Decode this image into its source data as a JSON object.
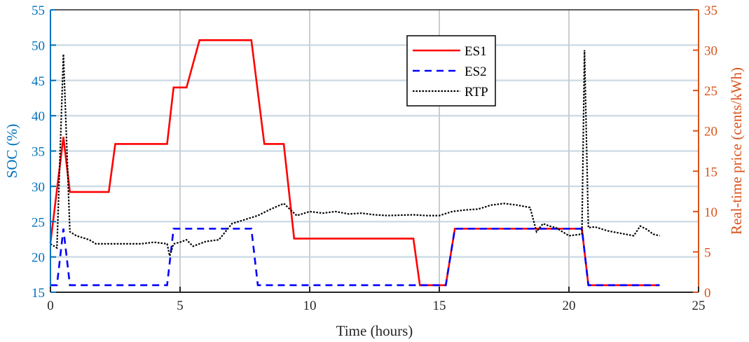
{
  "chart_data": {
    "type": "line",
    "xlabel": "Time (hours)",
    "ylabel_left": "SOC (%)",
    "ylabel_right": "Real-time price (cents/kWh)",
    "xlim": [
      0,
      25
    ],
    "ylim_left": [
      15,
      55
    ],
    "ylim_right": [
      0,
      35
    ],
    "x_ticks": [
      0,
      5,
      10,
      15,
      20,
      25
    ],
    "y_ticks_left": [
      15,
      20,
      25,
      30,
      35,
      40,
      45,
      50,
      55
    ],
    "y_ticks_right": [
      0,
      5,
      10,
      15,
      20,
      25,
      30,
      35
    ],
    "grid": true,
    "legend_position": "top-center",
    "colors": {
      "left_axis": "#0072BD",
      "right_axis": "#D95319",
      "es1": "#FF0000",
      "es2": "#0000FF",
      "rtp": "#000000",
      "grid": "#cfdde6"
    },
    "series": [
      {
        "name": "ES1",
        "axis": "left",
        "style": "solid",
        "x": [
          0,
          0.5,
          0.75,
          2.25,
          2.5,
          4.5,
          4.75,
          5.25,
          5.75,
          7.75,
          8.25,
          9.0,
          9.4,
          14.0,
          14.25,
          15.25,
          15.6,
          20.5,
          20.75,
          23.5
        ],
        "y": [
          22,
          37,
          29.2,
          29.2,
          36,
          36,
          44,
          44,
          50.7,
          50.7,
          36,
          36,
          22.6,
          22.6,
          16,
          16,
          24,
          24,
          16,
          16
        ]
      },
      {
        "name": "ES2",
        "axis": "left",
        "style": "dashed",
        "x": [
          0,
          0.25,
          0.5,
          0.75,
          4.5,
          4.75,
          7.75,
          8.0,
          15.25,
          15.6,
          20.5,
          20.75,
          23.5
        ],
        "y": [
          16,
          16,
          24,
          16,
          16,
          24,
          24,
          16,
          16,
          24,
          24,
          16,
          16
        ]
      },
      {
        "name": "RTP",
        "axis": "right",
        "style": "dotted",
        "x": [
          0,
          0.25,
          0.5,
          0.75,
          1.0,
          1.5,
          1.75,
          3.5,
          4.0,
          4.5,
          4.6,
          4.75,
          5.0,
          5.25,
          5.5,
          6.0,
          6.5,
          7.0,
          7.5,
          8.0,
          8.5,
          9.0,
          9.5,
          10.0,
          10.5,
          11.0,
          11.5,
          12.0,
          12.5,
          13.0,
          14.0,
          14.5,
          15.0,
          15.5,
          16.0,
          16.5,
          17.0,
          17.5,
          18.0,
          18.5,
          18.75,
          19.0,
          19.25,
          19.5,
          19.75,
          20.0,
          20.5,
          20.6,
          20.75,
          21.0,
          21.5,
          22.0,
          22.5,
          22.75,
          23.0,
          23.25,
          23.5
        ],
        "y": [
          6,
          5.5,
          29.5,
          7.5,
          7,
          6.5,
          6,
          6,
          6.2,
          6,
          4.5,
          6,
          6.2,
          6.5,
          5.7,
          6.3,
          6.5,
          8.5,
          9,
          9.5,
          10.3,
          11,
          9.5,
          10,
          9.8,
          10,
          9.7,
          9.8,
          9.6,
          9.5,
          9.6,
          9.5,
          9.5,
          10,
          10.2,
          10.3,
          10.8,
          11,
          10.8,
          10.5,
          7.5,
          8.5,
          8.2,
          8,
          7.5,
          7,
          7.2,
          30,
          8,
          8.1,
          7.6,
          7.3,
          7,
          8.2,
          7.8,
          7.2,
          7
        ]
      }
    ]
  }
}
